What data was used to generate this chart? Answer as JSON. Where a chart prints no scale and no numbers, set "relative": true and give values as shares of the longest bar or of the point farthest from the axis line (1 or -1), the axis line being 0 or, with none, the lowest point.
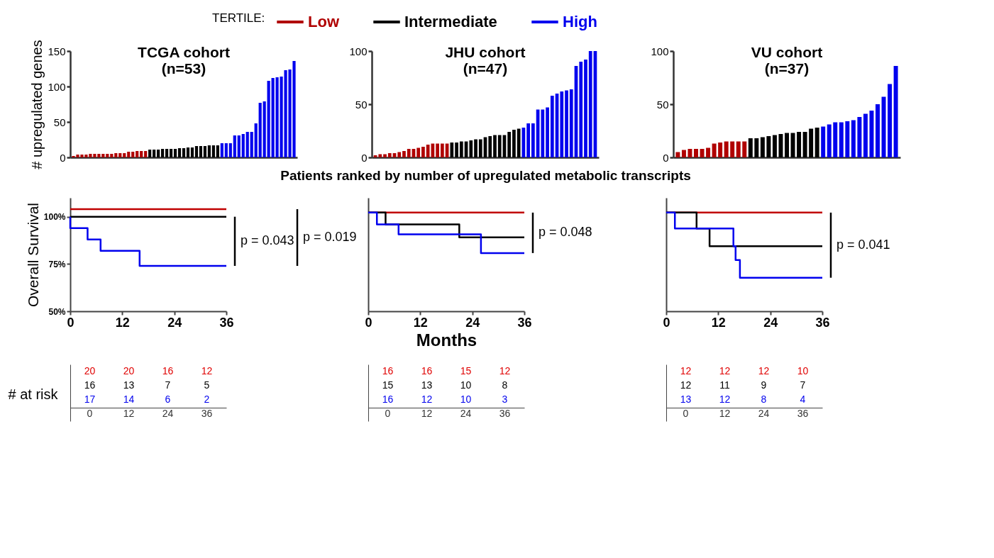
{
  "chart_data": [
    {
      "type": "bar",
      "title": "TCGA cohort\n(n=53)",
      "ylabel": "# upregulated genes",
      "legend": "top",
      "legend_title": "TERTILE:",
      "tick_labels": "y",
      "ylim": [
        0,
        150
      ],
      "yticks": [
        0,
        50,
        100,
        150
      ],
      "categories": [
        null,
        null,
        null,
        null,
        null,
        null,
        null,
        null,
        null,
        null,
        null,
        null,
        null,
        null,
        null,
        null,
        null,
        null,
        null,
        null,
        null,
        null,
        null,
        null,
        null,
        null,
        null,
        null,
        null,
        null,
        null,
        null,
        null,
        null,
        null,
        null,
        null,
        null,
        null,
        null,
        null,
        null,
        null,
        null,
        null,
        null,
        null,
        null,
        null,
        null,
        null,
        null,
        null
      ],
      "series": [
        {
          "name": "Low",
          "color": "#b00000",
          "values": [
            2,
            4,
            4,
            4,
            5,
            5,
            5,
            5,
            5,
            5,
            6,
            6,
            6,
            8,
            8,
            9,
            9,
            9,
            null,
            null,
            null,
            null,
            null,
            null,
            null,
            null,
            null,
            null,
            null,
            null,
            null,
            null,
            null,
            null,
            null,
            null,
            null,
            null,
            null,
            null,
            null,
            null,
            null,
            null,
            null,
            null,
            null,
            null,
            null,
            null,
            null,
            null,
            null
          ]
        },
        {
          "name": "Intermediate",
          "color": "#000000",
          "values": [
            null,
            null,
            null,
            null,
            null,
            null,
            null,
            null,
            null,
            null,
            null,
            null,
            null,
            null,
            null,
            null,
            null,
            null,
            11,
            11,
            11,
            12,
            12,
            12,
            12,
            13,
            13,
            14,
            14,
            16,
            16,
            16,
            17,
            17,
            17,
            null,
            null,
            null,
            null,
            null,
            null,
            null,
            null,
            null,
            null,
            null,
            null,
            null,
            null,
            null,
            null,
            null,
            null
          ]
        },
        {
          "name": "High",
          "color": "#0000ee",
          "values": [
            null,
            null,
            null,
            null,
            null,
            null,
            null,
            null,
            null,
            null,
            null,
            null,
            null,
            null,
            null,
            null,
            null,
            null,
            null,
            null,
            null,
            null,
            null,
            null,
            null,
            null,
            null,
            null,
            null,
            null,
            null,
            null,
            null,
            null,
            null,
            20,
            20,
            20,
            31,
            31,
            33,
            36,
            36,
            48,
            77,
            79,
            108,
            112,
            113,
            114,
            123,
            124,
            136
          ]
        }
      ]
    },
    {
      "type": "bar",
      "title": "JHU cohort\n(n=47)",
      "xlabel": "Patients ranked by number of upregulated metabolic transcripts",
      "tick_labels": "y",
      "ylim": [
        0,
        100
      ],
      "yticks": [
        0,
        50,
        100
      ],
      "categories": [
        null,
        null,
        null,
        null,
        null,
        null,
        null,
        null,
        null,
        null,
        null,
        null,
        null,
        null,
        null,
        null,
        null,
        null,
        null,
        null,
        null,
        null,
        null,
        null,
        null,
        null,
        null,
        null,
        null,
        null,
        null,
        null,
        null,
        null,
        null,
        null,
        null,
        null,
        null,
        null,
        null,
        null,
        null,
        null,
        null,
        null,
        null
      ],
      "series": [
        {
          "color": "#b00000",
          "values": [
            2,
            3,
            3,
            4,
            4,
            5,
            6,
            8,
            8,
            9,
            10,
            12,
            13,
            13,
            13,
            13,
            null,
            null,
            null,
            null,
            null,
            null,
            null,
            null,
            null,
            null,
            null,
            null,
            null,
            null,
            null,
            null,
            null,
            null,
            null,
            null,
            null,
            null,
            null,
            null,
            null,
            null,
            null,
            null,
            null,
            null,
            null
          ]
        },
        {
          "color": "#000000",
          "values": [
            null,
            null,
            null,
            null,
            null,
            null,
            null,
            null,
            null,
            null,
            null,
            null,
            null,
            null,
            null,
            null,
            14,
            14,
            15,
            15,
            16,
            17,
            17,
            19,
            20,
            21,
            21,
            21,
            24,
            26,
            27,
            null,
            null,
            null,
            null,
            null,
            null,
            null,
            null,
            null,
            null,
            null,
            null,
            null,
            null,
            null,
            null
          ]
        },
        {
          "color": "#0000ee",
          "values": [
            null,
            null,
            null,
            null,
            null,
            null,
            null,
            null,
            null,
            null,
            null,
            null,
            null,
            null,
            null,
            null,
            null,
            null,
            null,
            null,
            null,
            null,
            null,
            null,
            null,
            null,
            null,
            null,
            null,
            null,
            null,
            28,
            32,
            32,
            45,
            45,
            47,
            58,
            60,
            62,
            63,
            64,
            86,
            90,
            92,
            100,
            100
          ]
        }
      ]
    },
    {
      "type": "bar",
      "title": "VU cohort\n(n=37)",
      "tick_labels": "y",
      "ylim": [
        0,
        100
      ],
      "yticks": [
        0,
        50,
        100
      ],
      "categories": [
        null,
        null,
        null,
        null,
        null,
        null,
        null,
        null,
        null,
        null,
        null,
        null,
        null,
        null,
        null,
        null,
        null,
        null,
        null,
        null,
        null,
        null,
        null,
        null,
        null,
        null,
        null,
        null,
        null,
        null,
        null,
        null,
        null,
        null,
        null,
        null,
        null
      ],
      "series": [
        {
          "color": "#b00000",
          "values": [
            5,
            7,
            8,
            8,
            8,
            9,
            13,
            14,
            15,
            15,
            15,
            15,
            null,
            null,
            null,
            null,
            null,
            null,
            null,
            null,
            null,
            null,
            null,
            null,
            null,
            null,
            null,
            null,
            null,
            null,
            null,
            null,
            null,
            null,
            null,
            null,
            null
          ]
        },
        {
          "color": "#000000",
          "values": [
            null,
            null,
            null,
            null,
            null,
            null,
            null,
            null,
            null,
            null,
            null,
            null,
            18,
            18,
            19,
            20,
            21,
            22,
            23,
            23,
            24,
            24,
            27,
            28,
            null,
            null,
            null,
            null,
            null,
            null,
            null,
            null,
            null,
            null,
            null,
            null,
            null
          ]
        },
        {
          "color": "#0000ee",
          "values": [
            null,
            null,
            null,
            null,
            null,
            null,
            null,
            null,
            null,
            null,
            null,
            null,
            null,
            null,
            null,
            null,
            null,
            null,
            null,
            null,
            null,
            null,
            null,
            null,
            29,
            31,
            33,
            33,
            34,
            35,
            38,
            41,
            44,
            50,
            57,
            69,
            86
          ]
        }
      ]
    },
    {
      "type": "step",
      "ylabel": "Overall Survival",
      "xlim": [
        0,
        36
      ],
      "xticks": [
        0,
        12,
        24,
        36
      ],
      "ylim": [
        50,
        110
      ],
      "yticks": [
        {
          "value": 50,
          "label": "50%"
        },
        {
          "value": 75,
          "label": "75%"
        },
        {
          "value": 100,
          "label": "100%"
        }
      ],
      "annotations": [
        "p = 0.043",
        "p = 0.019"
      ],
      "series": [
        {
          "color": "#c00000",
          "x": [
            0,
            36
          ],
          "values": [
            104,
            104
          ]
        },
        {
          "color": "#000000",
          "x": [
            0,
            36
          ],
          "values": [
            100,
            100
          ]
        },
        {
          "color": "#0000ee",
          "x": [
            0,
            0,
            4,
            7,
            16,
            36
          ],
          "values": [
            100,
            94,
            88,
            82,
            74,
            74
          ]
        }
      ]
    },
    {
      "type": "step",
      "xlabel": "Months",
      "xlim": [
        0,
        36
      ],
      "xticks": [
        0,
        12,
        24,
        36
      ],
      "relative": true,
      "annotations": [
        "p = 0.048"
      ],
      "series": [
        {
          "color": "#c00000",
          "x": [
            0,
            36
          ],
          "values": [
            1,
            1
          ]
        },
        {
          "color": "#000000",
          "x": [
            0,
            4,
            21,
            36
          ],
          "values": [
            1,
            0.88,
            0.75,
            0.75
          ]
        },
        {
          "color": "#0000ee",
          "x": [
            0,
            2,
            7,
            26,
            36
          ],
          "values": [
            1,
            0.88,
            0.78,
            0.59,
            0.59
          ]
        }
      ]
    },
    {
      "type": "step",
      "xlim": [
        0,
        36
      ],
      "xticks": [
        0,
        12,
        24,
        36
      ],
      "relative": true,
      "annotations": [
        "p = 0.041"
      ],
      "series": [
        {
          "color": "#c00000",
          "x": [
            0,
            36
          ],
          "values": [
            1,
            1
          ]
        },
        {
          "color": "#000000",
          "x": [
            0,
            7,
            10,
            36
          ],
          "values": [
            1,
            0.84,
            0.66,
            0.66
          ]
        },
        {
          "color": "#0000ee",
          "x": [
            0,
            2,
            15.5,
            16,
            17,
            36
          ],
          "values": [
            1,
            0.84,
            0.66,
            0.52,
            0.34,
            0.34
          ]
        }
      ]
    },
    {
      "type": "other",
      "ylabel": "# at risk",
      "colors": [
        "#e00000",
        "#000000",
        "#0000ee",
        "#333333"
      ],
      "cell_labels": [
        [
          "20",
          "20",
          "16",
          "12"
        ],
        [
          "16",
          "13",
          "7",
          "5"
        ],
        [
          "17",
          "14",
          "6",
          "2"
        ],
        [
          "0",
          "12",
          "24",
          "36"
        ]
      ]
    },
    {
      "type": "other",
      "colors": [
        "#e00000",
        "#000000",
        "#0000ee",
        "#333333"
      ],
      "cell_labels": [
        [
          "16",
          "16",
          "15",
          "12"
        ],
        [
          "15",
          "13",
          "10",
          "8"
        ],
        [
          "16",
          "12",
          "10",
          "3"
        ],
        [
          "0",
          "12",
          "24",
          "36"
        ]
      ]
    },
    {
      "type": "other",
      "colors": [
        "#e00000",
        "#000000",
        "#0000ee",
        "#333333"
      ],
      "cell_labels": [
        [
          "12",
          "12",
          "12",
          "10"
        ],
        [
          "12",
          "11",
          "9",
          "7"
        ],
        [
          "13",
          "12",
          "8",
          "4"
        ],
        [
          "0",
          "12",
          "24",
          "36"
        ]
      ]
    }
  ]
}
